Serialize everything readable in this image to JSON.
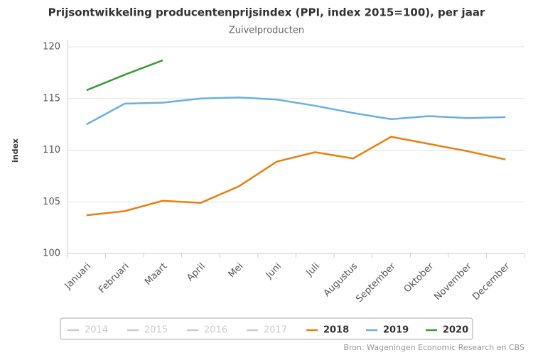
{
  "chart_data": {
    "type": "line",
    "title": "Prijsontwikkeling producentenprijsindex (PPI, index 2015=100), per jaar",
    "subtitle": "Zuivelproducten",
    "y_label": "index",
    "source": "Bron: Wageningen Economic Research en CBS",
    "categories": [
      "Januari",
      "Februari",
      "Maart",
      "April",
      "Mei",
      "Juni",
      "Juli",
      "Augustus",
      "September",
      "Oktober",
      "November",
      "December"
    ],
    "series": [
      {
        "name": "2014",
        "color": "#cccccc",
        "values": [
          null,
          null,
          null,
          null,
          null,
          null,
          null,
          null,
          null,
          null,
          null,
          null
        ]
      },
      {
        "name": "2015",
        "color": "#cccccc",
        "values": [
          null,
          null,
          null,
          null,
          null,
          null,
          null,
          null,
          null,
          null,
          null,
          null
        ]
      },
      {
        "name": "2016",
        "color": "#cccccc",
        "values": [
          null,
          null,
          null,
          null,
          null,
          null,
          null,
          null,
          null,
          null,
          null,
          null
        ]
      },
      {
        "name": "2017",
        "color": "#cccccc",
        "values": [
          null,
          null,
          null,
          null,
          null,
          null,
          null,
          null,
          null,
          null,
          null,
          null
        ]
      },
      {
        "name": "2018",
        "color": "#e8800f",
        "values": [
          103.7,
          104.1,
          105.1,
          104.9,
          106.5,
          108.9,
          109.8,
          109.2,
          111.3,
          110.6,
          109.9,
          109.1
        ]
      },
      {
        "name": "2019",
        "color": "#6bb0e0",
        "values": [
          112.5,
          114.5,
          114.6,
          115.0,
          115.1,
          114.9,
          114.3,
          113.6,
          113.0,
          113.3,
          113.1,
          113.2
        ]
      },
      {
        "name": "2020",
        "color": "#3a9a35",
        "values": [
          115.8,
          117.3,
          118.7,
          null,
          null,
          null,
          null,
          null,
          null,
          null,
          null,
          null
        ]
      }
    ],
    "ylim": [
      100,
      120
    ],
    "yticks": [
      100,
      105,
      110,
      115,
      120
    ],
    "grid": true
  }
}
